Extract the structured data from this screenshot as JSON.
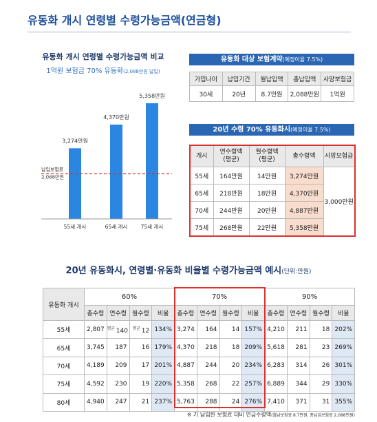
{
  "header": {
    "title": "유동화 개시 연령별 수령가능금액(연금형)"
  },
  "comparison_chart": {
    "title": "유동화 개시 연령별 수령가능금액 비교",
    "subtitle": "1억원 보험금 70% 유동화",
    "subtitle_note": "(2,088만원 납입)",
    "categories": [
      "55세 개시",
      "65세 개시",
      "75세 개시"
    ],
    "values": [
      3274,
      4370,
      5358
    ],
    "value_labels": [
      "3,274만원",
      "4,370만원",
      "5,358만원"
    ],
    "color": "#2a86e0",
    "reference": {
      "label_lines": [
        "납입보험료",
        "2,088만원"
      ],
      "value": 2088,
      "color": "#d9302c"
    }
  },
  "contract_table": {
    "title": "유동화 대상 보험계약",
    "title_note": "(예정이율 7.5%)",
    "columns": [
      "가입나이",
      "납입기간",
      "월납입액",
      "총납입액",
      "사망보험금"
    ],
    "rows": [
      [
        "30세",
        "20년",
        "8.7만원",
        "2,088만원",
        "1억원"
      ]
    ]
  },
  "payout_table": {
    "title": "20년 수령 70% 유동화시",
    "title_note": "(예정이율 7.5%)",
    "columns": [
      [
        "개시"
      ],
      [
        "연수령액",
        "(평균)"
      ],
      [
        "월수령액",
        "(평균)"
      ],
      [
        "총수령액"
      ],
      [
        "사망보험금"
      ]
    ],
    "rows": [
      [
        "55세",
        "164만원",
        "14만원",
        "3,274만원"
      ],
      [
        "65세",
        "218만원",
        "18만원",
        "4,370만원"
      ],
      [
        "70세",
        "244만원",
        "20만원",
        "4,887만원"
      ],
      [
        "75세",
        "268만원",
        "22만원",
        "5,358만원"
      ]
    ],
    "death_benefit": "3,000만원"
  },
  "ratio_table": {
    "title": "20년 유동화시, 연령별·유동화 비율별 수령가능금액 예시",
    "unit_note": "(단위:만원)",
    "row_header": "유동화 개시",
    "groups": [
      "60%",
      "70%",
      "90%"
    ],
    "subcolumns": [
      "총수령",
      "연수령",
      "월수령",
      "비율"
    ],
    "rows": [
      {
        "age": "55세",
        "cells": [
          "2,807",
          {
            "note": "평균",
            "text": "140"
          },
          {
            "note": "평균",
            "text": "12"
          },
          "134%",
          "3,274",
          "164",
          "14",
          "157%",
          "4,210",
          "211",
          "18",
          "202%"
        ]
      },
      {
        "age": "65세",
        "cells": [
          "3,745",
          "187",
          "16",
          "179%",
          "4,370",
          "218",
          "18",
          "209%",
          "5,618",
          "281",
          "23",
          "269%"
        ]
      },
      {
        "age": "70세",
        "cells": [
          "4,189",
          "209",
          "17",
          "201%",
          "4,887",
          "244",
          "20",
          "234%",
          "6,283",
          "314",
          "26",
          "301%"
        ]
      },
      {
        "age": "75세",
        "cells": [
          "4,592",
          "230",
          "19",
          "220%",
          "5,358",
          "268",
          "22",
          "257%",
          "6,889",
          "344",
          "29",
          "330%"
        ]
      },
      {
        "age": "80세",
        "cells": [
          "4,940",
          "247",
          "21",
          "237%",
          "5,763",
          "288",
          "24",
          "276%",
          "7,410",
          "371",
          "31",
          "355%"
        ]
      }
    ]
  },
  "footnote": {
    "text": "※ 기 납입한 보험료 대비 연금수령액",
    "note": "(월납보험료 8.7만원, 총납입보험료 2,088만원)"
  }
}
